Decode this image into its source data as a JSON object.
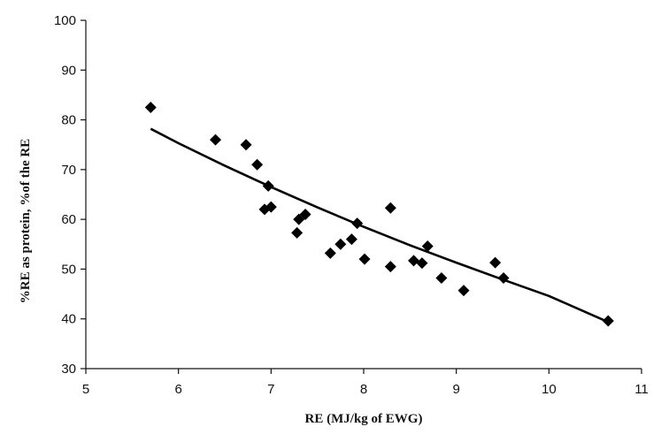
{
  "chart_data": {
    "type": "scatter",
    "title": "",
    "xlabel": "RE (MJ/kg of  EWG)",
    "ylabel": "%RE as protein, %of the  RE",
    "xlim": [
      5,
      11
    ],
    "ylim": [
      30,
      100
    ],
    "x_ticks": [
      5,
      6,
      7,
      8,
      9,
      10,
      11
    ],
    "y_ticks": [
      30,
      40,
      50,
      60,
      70,
      80,
      90,
      100
    ],
    "x_tick_labels": [
      "5",
      "6",
      "7",
      "8",
      "9",
      "10",
      "11"
    ],
    "y_tick_labels": [
      "30",
      "40",
      "50",
      "60",
      "70",
      "80",
      "90",
      "100"
    ],
    "grid": false,
    "legend": "none",
    "marker": "diamond",
    "marker_color": "#000000",
    "line_color": "#000000",
    "series": [
      {
        "type": "scatter",
        "x": [
          5.7,
          6.4,
          6.73,
          6.85,
          6.93,
          6.97,
          7.0,
          7.28,
          7.3,
          7.37,
          7.64,
          7.75,
          7.87,
          7.93,
          8.01,
          8.29,
          8.29,
          8.54,
          8.63,
          8.69,
          8.84,
          9.08,
          9.42,
          9.51,
          10.64
        ],
        "y": [
          82.5,
          76.0,
          75.0,
          71.0,
          62.0,
          66.7,
          62.5,
          57.3,
          60.0,
          61.0,
          53.2,
          55.0,
          56.0,
          59.2,
          52.0,
          62.3,
          50.5,
          51.7,
          51.2,
          54.6,
          48.2,
          45.7,
          51.3,
          48.2,
          39.6
        ]
      },
      {
        "type": "line",
        "x": [
          5.7,
          6.0,
          6.5,
          7.0,
          7.5,
          8.0,
          8.5,
          9.0,
          9.5,
          10.0,
          10.6
        ],
        "y": [
          78.2,
          75.3,
          70.8,
          66.5,
          62.4,
          58.5,
          54.8,
          51.3,
          47.9,
          44.6,
          39.7
        ]
      }
    ]
  }
}
